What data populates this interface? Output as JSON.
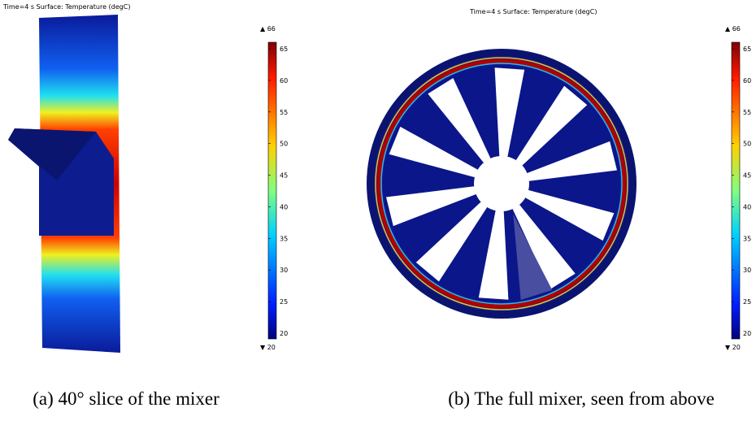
{
  "panels": [
    {
      "title": "Time=4 s   Surface: Temperature (degC)",
      "colorbar": {
        "max_label": "▲ 66",
        "min_label": "▼ 20",
        "ticks": [
          65,
          60,
          55,
          50,
          45,
          40,
          35,
          30,
          25,
          20
        ]
      },
      "caption": "(a) 40° slice of the mixer"
    },
    {
      "title": "Time=4 s   Surface: Temperature (degC)",
      "colorbar": {
        "max_label": "▲ 66",
        "min_label": "▼ 20",
        "ticks": [
          65,
          60,
          55,
          50,
          45,
          40,
          35,
          30,
          25,
          20
        ]
      },
      "caption": "(b) The full mixer, seen from above"
    }
  ]
}
